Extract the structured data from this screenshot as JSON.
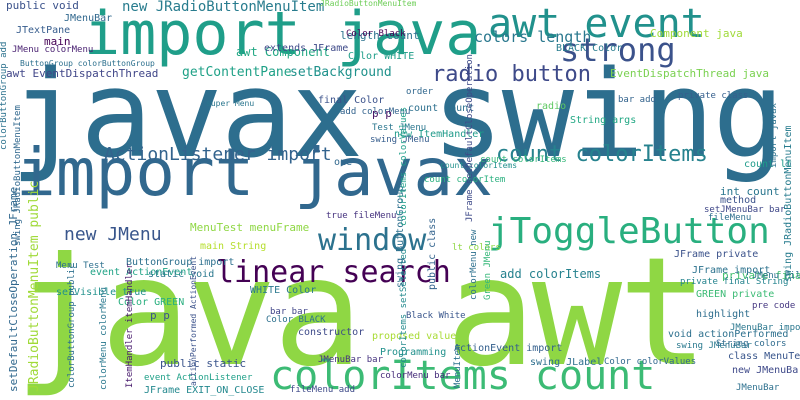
{
  "words": [
    {
      "text": "javax swing",
      "color": "#2d6e8e"
    },
    {
      "text": "java awt",
      "color": "#8fd744"
    },
    {
      "text": "import javax",
      "color": "#31688e"
    },
    {
      "text": "import java",
      "color": "#1f9e89"
    },
    {
      "text": "colorItems count",
      "color": "#3cbb75"
    },
    {
      "text": "awt event",
      "color": "#21918c"
    },
    {
      "text": "jToggleButton",
      "color": "#29af7f"
    },
    {
      "text": "strong",
      "color": "#3b528b"
    },
    {
      "text": "window",
      "color": "#2c728e"
    },
    {
      "text": "linear search",
      "color": "#440154"
    },
    {
      "text": "count colorItems",
      "color": "#26828e"
    },
    {
      "text": "radio button",
      "color": "#3e4a89"
    },
    {
      "text": "ActionListener import",
      "color": "#33638d"
    },
    {
      "text": "new JMenu",
      "color": "#39568c"
    },
    {
      "text": "new JRadioButtonMenuItem",
      "color": "#287c8e"
    },
    {
      "text": "colors length",
      "color": "#2a788e"
    },
    {
      "text": "awt Component",
      "color": "#22a884"
    },
    {
      "text": "getContentPane",
      "color": "#1fa187"
    },
    {
      "text": "setBackground",
      "color": "#20928c"
    },
    {
      "text": "awt EventDispatchThread",
      "color": "#404688"
    },
    {
      "text": "EventDispatchThread java",
      "color": "#7ad151"
    },
    {
      "text": "private final",
      "color": "#44bf70"
    },
    {
      "text": "count colorItems",
      "color": "#35b779"
    },
    {
      "text": "count colorItem",
      "color": "#2ab07f"
    },
    {
      "text": "count lt",
      "color": "#1e9b8a"
    },
    {
      "text": "int count",
      "color": "#2a768e"
    },
    {
      "text": "public void",
      "color": "#3b528b"
    },
    {
      "text": "JMenuBar",
      "color": "#31688e"
    },
    {
      "text": "JTextPane",
      "color": "#365c8d"
    },
    {
      "text": "main",
      "color": "#440154"
    },
    {
      "text": "length count",
      "color": "#2c728e"
    },
    {
      "text": "extends JFrame",
      "color": "#3e4a89"
    },
    {
      "text": "Color WHITE",
      "color": "#1f9e89"
    },
    {
      "text": "BLACK Color",
      "color": "#287c8e"
    },
    {
      "text": "Component java",
      "color": "#a0da39"
    },
    {
      "text": "final Color",
      "color": "#3b528b"
    },
    {
      "text": "MenuTest menuFrame",
      "color": "#8fd744"
    },
    {
      "text": "main String",
      "color": "#b5de2b"
    },
    {
      "text": "add colorItems",
      "color": "#26828e"
    },
    {
      "text": "event ActionEvent",
      "color": "#20a386"
    },
    {
      "text": "ButtonGroup import",
      "color": "#2d708e"
    },
    {
      "text": "static void",
      "color": "#2a788e"
    },
    {
      "text": "setVisible true",
      "color": "#21918c"
    },
    {
      "text": "Color GREEN",
      "color": "#29af7f"
    },
    {
      "text": "public static",
      "color": "#3a548c"
    },
    {
      "text": "JFrame EXIT_ON_CLOSE",
      "color": "#23888e"
    },
    {
      "text": "event ActionListener",
      "color": "#1fa088"
    },
    {
      "text": "ActionEvent import",
      "color": "#34608d"
    },
    {
      "text": "swing JLabel",
      "color": "#2e6f8e"
    },
    {
      "text": "Color colorValues",
      "color": "#31688e"
    },
    {
      "text": "colorMenu bar",
      "color": "#472d7b"
    },
    {
      "text": "JMenuBar bar",
      "color": "#46337f"
    },
    {
      "text": "Programming",
      "color": "#21918c"
    },
    {
      "text": "proposed value",
      "color": "#a8db34"
    },
    {
      "text": "JFrame private",
      "color": "#3b528b"
    },
    {
      "text": "JFrame import",
      "color": "#2c728e"
    },
    {
      "text": "private final String",
      "color": "#25848e"
    },
    {
      "text": "GREEN private",
      "color": "#3cbb75"
    },
    {
      "text": "highlight",
      "color": "#2e6e8e"
    },
    {
      "text": "pre code",
      "color": "#453781"
    },
    {
      "text": "void actionPerformed",
      "color": "#2d708e"
    },
    {
      "text": "swing JMenuBar",
      "color": "#29798e"
    },
    {
      "text": "JMenuBar import",
      "color": "#2a778e"
    },
    {
      "text": "String colors",
      "color": "#2f6b8e"
    },
    {
      "text": "class MenuTest",
      "color": "#39568c"
    },
    {
      "text": "JMenu colorMenu",
      "color": "#481f70"
    },
    {
      "text": "new JMenuBar",
      "color": "#3e4989"
    },
    {
      "text": "JRadioButtonMenuItem",
      "color": "#6ece58"
    },
    {
      "text": "radio",
      "color": "#5ec962"
    },
    {
      "text": "new ItemHandler",
      "color": "#1f9a8a"
    },
    {
      "text": "count count",
      "color": "#2d708e"
    },
    {
      "text": "order",
      "color": "#31688e"
    },
    {
      "text": "add colorMenu",
      "color": "#33638d"
    },
    {
      "text": "Test JMenu",
      "color": "#2a768e"
    },
    {
      "text": "swing JMenu",
      "color": "#365d8d"
    },
    {
      "text": "String args",
      "color": "#22a884"
    },
    {
      "text": "Color Black",
      "color": "#440154"
    },
    {
      "text": "p p",
      "color": "#471365"
    },
    {
      "text": "private class",
      "color": "#355f8d"
    },
    {
      "text": "one",
      "color": "#31688e"
    },
    {
      "text": "bar add",
      "color": "#33638d"
    },
    {
      "text": "constructor",
      "color": "#3e4a89"
    },
    {
      "text": "WHITE Color",
      "color": "#2a788e"
    },
    {
      "text": "Color BLACK",
      "color": "#2d708e"
    },
    {
      "text": "Black White",
      "color": "#39568c"
    },
    {
      "text": "count colorItems",
      "color": "#21918c"
    },
    {
      "text": "method",
      "color": "#3b528b"
    },
    {
      "text": "setJMenuBar bar",
      "color": "#3f4788"
    },
    {
      "text": "JMenu File",
      "color": "#2c728e"
    },
    {
      "text": "true fileMenu",
      "color": "#46337f"
    },
    {
      "text": "super Menu",
      "color": "#2a768e"
    },
    {
      "text": "ButtonGroup colorButtonGroup",
      "color": "#2d708e"
    },
    {
      "text": "colorItems setSelected",
      "color": "#238a8d"
    },
    {
      "text": "fileMenu add",
      "color": "#3e4a89"
    },
    {
      "text": "bar bar",
      "color": "#404588"
    },
    {
      "text": "fileMenu",
      "color": "#2e6e8e"
    },
    {
      "text": "Menu Test",
      "color": "#2d708e"
    },
    {
      "text": "ItemHandler itemHandler",
      "color": "#481b6d"
    },
    {
      "text": "lt colors",
      "color": "#8fd744"
    },
    {
      "text": "Green JMenu",
      "color": "#35b779"
    },
    {
      "text": "p p",
      "color": "#3b528b"
    },
    {
      "text": "setDefaultCloseOperation JFrame",
      "color": "#31688e"
    },
    {
      "text": "colorButtonGroup add",
      "color": "#2c728e"
    },
    {
      "text": "JRadioButtonMenuItem public",
      "color": "#a0da39"
    },
    {
      "text": "swing ButtonGroup",
      "color": "#2d708e"
    },
    {
      "text": "swing JRadioButtonMenuItem",
      "color": "#287c8e"
    },
    {
      "text": "public class",
      "color": "#33638d"
    },
    {
      "text": "import javax",
      "color": "#2c728e"
    },
    {
      "text": "actionPerformed ActionEvent",
      "color": "#3b528b"
    },
    {
      "text": "colorButtonGroup public",
      "color": "#2d708e"
    },
    {
      "text": "colorMenu colorMenu",
      "color": "#2a788e"
    },
    {
      "text": "colorItems colorValues",
      "color": "#1f9e89"
    },
    {
      "text": "JFrame setDefaultCloseOperation",
      "color": "#3e4a89"
    },
    {
      "text": "swing JRadioButtonMenuItem",
      "color": "#31688e"
    },
    {
      "text": "MenuItem",
      "color": "#2c728e"
    },
    {
      "text": "colorMenu new",
      "color": "#2d708e"
    },
    {
      "text": "JMenuBar",
      "color": "#2a788e"
    }
  ]
}
